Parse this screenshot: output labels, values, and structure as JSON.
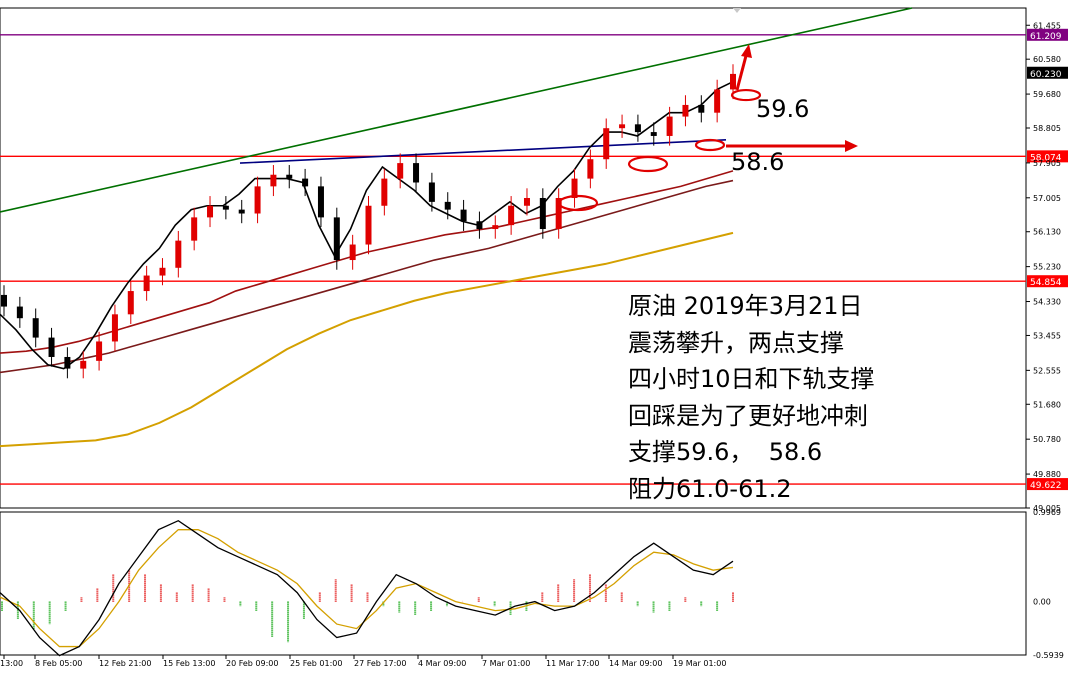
{
  "chart_data": [
    {
      "type": "candlestick",
      "title": "",
      "xlabel": "",
      "ylabel": "",
      "ylim": [
        49.005,
        61.9
      ],
      "y_ticks": [
        "61.455",
        "60.580",
        "59.680",
        "58.805",
        "57.905",
        "57.005",
        "56.130",
        "55.230",
        "54.330",
        "53.455",
        "52.555",
        "51.680",
        "50.780",
        "49.880",
        "49.005"
      ],
      "x_ticks": [
        "13:00",
        "8 Feb 05:00",
        "12 Feb 21:00",
        "15 Feb 13:00",
        "20 Feb 09:00",
        "25 Feb 01:00",
        "27 Feb 17:00",
        "4 Mar 09:00",
        "7 Mar 01:00",
        "11 Mar 17:00",
        "14 Mar 09:00",
        "19 Mar 01:00"
      ],
      "price_levels": [
        {
          "value": 61.209,
          "label": "61.209",
          "color": "#800080"
        },
        {
          "value": 60.23,
          "label": "60.230",
          "color": "#000000"
        },
        {
          "value": 58.074,
          "label": "58.074",
          "color": "#ff0000"
        },
        {
          "value": 54.854,
          "label": "54.854",
          "color": "#ff0000"
        },
        {
          "value": 49.622,
          "label": "49.622",
          "color": "#ff0000"
        }
      ],
      "series": [
        {
          "name": "",
          "kind": "close",
          "values": [
            54.2,
            53.9,
            53.4,
            52.9,
            52.6,
            52.8,
            53.3,
            54.0,
            54.6,
            55.0,
            55.2,
            55.9,
            56.5,
            56.8,
            56.7,
            56.6,
            57.3,
            57.6,
            57.5,
            57.3,
            56.5,
            55.4,
            55.8,
            56.8,
            57.5,
            57.9,
            57.4,
            56.9,
            56.7,
            56.4,
            56.2,
            56.3,
            56.8,
            57.0,
            56.2,
            57.0,
            57.5,
            58.0,
            58.8,
            58.9,
            58.7,
            58.6,
            59.1,
            59.4,
            59.2,
            59.8,
            60.2
          ]
        },
        {
          "name": "",
          "kind": "ma-short",
          "values": [
            54.0,
            53.6,
            53.1,
            52.7,
            52.6,
            52.9,
            53.5,
            54.2,
            54.8,
            55.3,
            55.7,
            56.3,
            56.7,
            56.8,
            56.8,
            57.1,
            57.5,
            57.5,
            57.5,
            57.4,
            56.3,
            55.5,
            56.2,
            57.2,
            57.8,
            57.5,
            57.2,
            56.8,
            56.6,
            56.4,
            56.3,
            56.6,
            56.9,
            56.6,
            56.8,
            57.3,
            57.7,
            58.3,
            58.7,
            58.7,
            58.6,
            58.9,
            59.2,
            59.2,
            59.4,
            59.8,
            60.0
          ]
        },
        {
          "name": "",
          "kind": "ma-mid",
          "values": [
            53.0,
            53.05,
            53.15,
            53.3,
            53.5,
            53.7,
            53.9,
            54.1,
            54.3,
            54.6,
            54.8,
            55.0,
            55.2,
            55.4,
            55.6,
            55.75,
            55.9,
            56.05,
            56.15,
            56.25,
            56.4,
            56.55,
            56.7,
            56.85,
            57.0,
            57.15,
            57.3,
            57.5,
            57.7
          ]
        },
        {
          "name": "",
          "kind": "ma-long",
          "values": [
            52.5,
            52.6,
            52.7,
            52.85,
            53.0,
            53.2,
            53.4,
            53.6,
            53.8,
            54.0,
            54.2,
            54.4,
            54.6,
            54.8,
            55.0,
            55.2,
            55.4,
            55.55,
            55.7,
            55.9,
            56.1,
            56.3,
            56.5,
            56.7,
            56.9,
            57.1,
            57.3,
            57.45
          ]
        },
        {
          "name": "",
          "kind": "ma-200",
          "values": [
            50.6,
            50.65,
            50.7,
            50.75,
            50.9,
            51.2,
            51.6,
            52.1,
            52.6,
            53.1,
            53.5,
            53.85,
            54.1,
            54.35,
            54.55,
            54.7,
            54.85,
            55.0,
            55.15,
            55.3,
            55.5,
            55.7,
            55.9,
            56.1
          ]
        }
      ],
      "trendlines": [
        {
          "from": [
            "1 Feb",
            56.64
          ],
          "to": [
            "21 Mar",
            61.9
          ],
          "color": "#007000"
        },
        {
          "from": [
            "20 Feb",
            57.9
          ],
          "to": [
            "21 Mar",
            58.5
          ],
          "color": "#000080"
        }
      ]
    },
    {
      "type": "histogram+line",
      "title": "",
      "ylim": [
        -0.5939,
        0.9969
      ],
      "y_ticks": [
        "0.9969",
        "0.00",
        "-0.5939"
      ],
      "series": [
        {
          "name": "",
          "kind": "histogram",
          "values": [
            -0.1,
            -0.2,
            -0.3,
            -0.25,
            -0.1,
            0.05,
            0.15,
            0.3,
            0.35,
            0.3,
            0.2,
            0.1,
            0.2,
            0.15,
            0.05,
            -0.05,
            -0.1,
            -0.4,
            -0.45,
            -0.2,
            0.1,
            0.25,
            0.2,
            0.1,
            -0.05,
            -0.12,
            -0.15,
            -0.1,
            -0.05,
            0.0,
            0.05,
            -0.05,
            -0.15,
            -0.1,
            0.1,
            0.2,
            0.25,
            0.3,
            0.2,
            0.1,
            -0.05,
            -0.12,
            -0.1,
            0.05,
            -0.05,
            -0.1,
            0.1
          ]
        },
        {
          "name": "",
          "kind": "fast",
          "values": [
            0.1,
            -0.1,
            -0.4,
            -0.6,
            -0.5,
            -0.2,
            0.2,
            0.5,
            0.8,
            0.9,
            0.75,
            0.6,
            0.5,
            0.4,
            0.3,
            0.1,
            -0.2,
            -0.4,
            -0.35,
            0.0,
            0.3,
            0.2,
            0.05,
            -0.05,
            -0.1,
            -0.15,
            -0.05,
            0.0,
            -0.1,
            -0.05,
            0.1,
            0.3,
            0.5,
            0.65,
            0.5,
            0.35,
            0.3,
            0.45
          ]
        },
        {
          "name": "",
          "kind": "slow",
          "values": [
            0.05,
            -0.05,
            -0.3,
            -0.5,
            -0.5,
            -0.3,
            0.0,
            0.35,
            0.6,
            0.8,
            0.8,
            0.7,
            0.55,
            0.45,
            0.35,
            0.2,
            -0.05,
            -0.25,
            -0.3,
            -0.1,
            0.15,
            0.2,
            0.1,
            0.0,
            -0.05,
            -0.1,
            -0.08,
            -0.02,
            -0.05,
            -0.05,
            0.05,
            0.2,
            0.4,
            0.55,
            0.52,
            0.42,
            0.35,
            0.38
          ]
        }
      ]
    }
  ],
  "annotation": {
    "lines": [
      "原油 2019年3月21日",
      "震荡攀升，两点支撑",
      "四小时10日和下轨支撑",
      "回踩是为了更好地冲刺",
      "支撑59.6，  58.6",
      "阻力61.0-61.2"
    ]
  },
  "callouts": {
    "upper": "59.6",
    "lower": "58.6"
  },
  "colors": {
    "marker": "#e00000",
    "trend_green": "#007000",
    "neckline": "#000080",
    "ma200": "#d4a000",
    "ma_mid": "#a01010",
    "ma_long": "#7a1a1a",
    "grid_border": "#000000"
  }
}
